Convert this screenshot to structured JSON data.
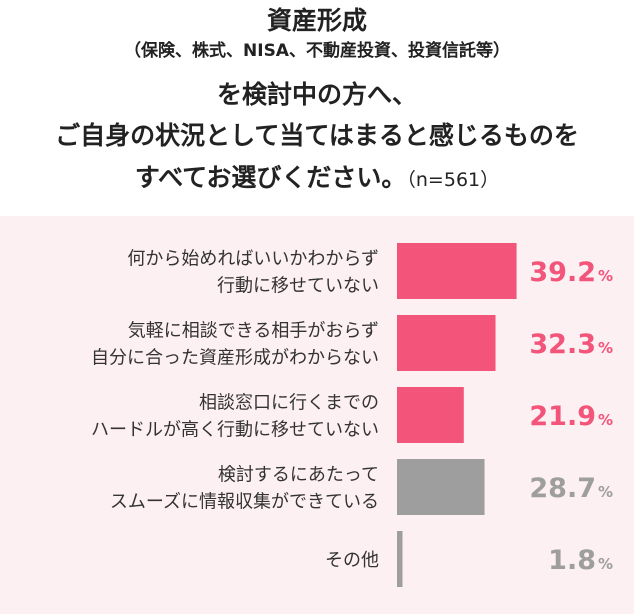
{
  "header": {
    "line1": "資産形成",
    "line2": "（保険、株式、NISA、不動産投資、投資信託等）",
    "line3": "を検討中の方へ、",
    "line4": "ご自身の状況として当てはまると感じるものを",
    "line5": "すべてお選びください。",
    "sample": "（n=561）"
  },
  "colors": {
    "highlight": "#f2547a",
    "neutral": "#9e9e9e",
    "background": "#fdf0f2"
  },
  "chart_data": {
    "type": "bar",
    "orientation": "horizontal",
    "unit": "%",
    "categories": [
      [
        "何から始めればいいかわからず",
        "行動に移せていない"
      ],
      [
        "気軽に相談できる相手がおらず",
        "自分に合った資産形成がわからない"
      ],
      [
        "相談窓口に行くまでの",
        "ハードルが高く行動に移せていない"
      ],
      [
        "検討するにあたって",
        "スムーズに情報収集ができている"
      ],
      [
        "その他"
      ]
    ],
    "values": [
      39.2,
      32.3,
      21.9,
      28.7,
      1.8
    ],
    "value_labels": [
      "39.2",
      "32.3",
      "21.9",
      "28.7",
      "1.8"
    ],
    "highlighted": [
      true,
      true,
      true,
      false,
      false
    ]
  }
}
